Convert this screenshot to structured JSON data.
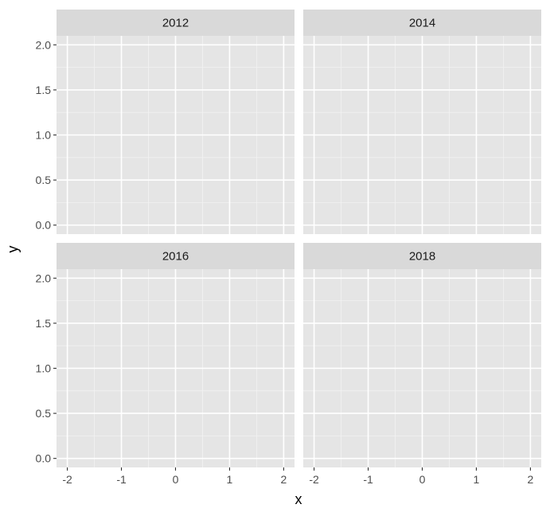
{
  "chart_data": {
    "type": "scatter",
    "facets": [
      "2012",
      "2014",
      "2016",
      "2018"
    ],
    "facet_layout": {
      "rows": 2,
      "cols": 2
    },
    "xlabel": "x",
    "ylabel": "y",
    "xlim": [
      -2.2,
      2.2
    ],
    "ylim": [
      -0.1,
      2.1
    ],
    "x_ticks": [
      -2,
      -1,
      0,
      1,
      2
    ],
    "x_tick_labels": [
      "-2",
      "-1",
      "0",
      "1",
      "2"
    ],
    "y_ticks": [
      0,
      0.5,
      1,
      1.5,
      2
    ],
    "y_tick_labels": [
      "0.0",
      "0.5",
      "1.0",
      "1.5",
      "2.0"
    ],
    "series": [
      {
        "x": [],
        "y": []
      }
    ],
    "grid": true,
    "legend": "none",
    "colors": {
      "panel_background": "#e5e5e5",
      "strip_background": "#d9d9d9",
      "grid_major": "#ffffff",
      "grid_minor": "#f2f2f2",
      "tick": "#333333"
    }
  }
}
